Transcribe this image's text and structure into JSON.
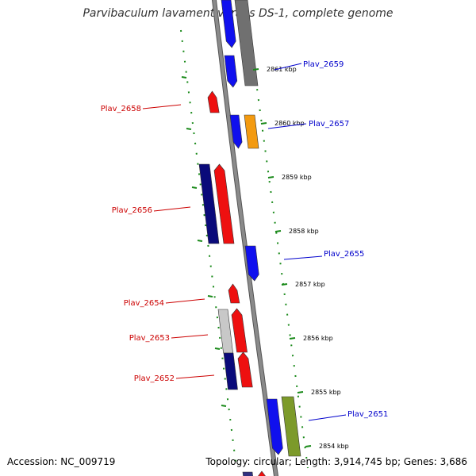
{
  "title": "Parvibaculum lavamentivorans DS-1, complete genome",
  "footer": {
    "accession": "Accession: NC_009719",
    "summary": "Topology: circular; Length: 3,914,745 bp; Genes: 3,686"
  },
  "colors": {
    "backbone": "#8a8a8a",
    "tick": "#1a8a1a",
    "forward_label": "#cc0000",
    "reverse_label": "#0000cc"
  },
  "scale_ticks": [
    "2861 kbp",
    "2860 kbp",
    "2859 kbp",
    "2858 kbp",
    "2857 kbp",
    "2856 kbp",
    "2855 kbp",
    "2854 kbp"
  ],
  "genes": [
    {
      "label": "Plav_2659",
      "strand": "reverse"
    },
    {
      "label": "Plav_2658",
      "strand": "forward"
    },
    {
      "label": "Plav_2657",
      "strand": "reverse"
    },
    {
      "label": "Plav_2656",
      "strand": "forward"
    },
    {
      "label": "Plav_2655",
      "strand": "reverse"
    },
    {
      "label": "Plav_2654",
      "strand": "forward"
    },
    {
      "label": "Plav_2653",
      "strand": "forward"
    },
    {
      "label": "Plav_2652",
      "strand": "forward"
    },
    {
      "label": "Plav_2651",
      "strand": "reverse"
    }
  ]
}
